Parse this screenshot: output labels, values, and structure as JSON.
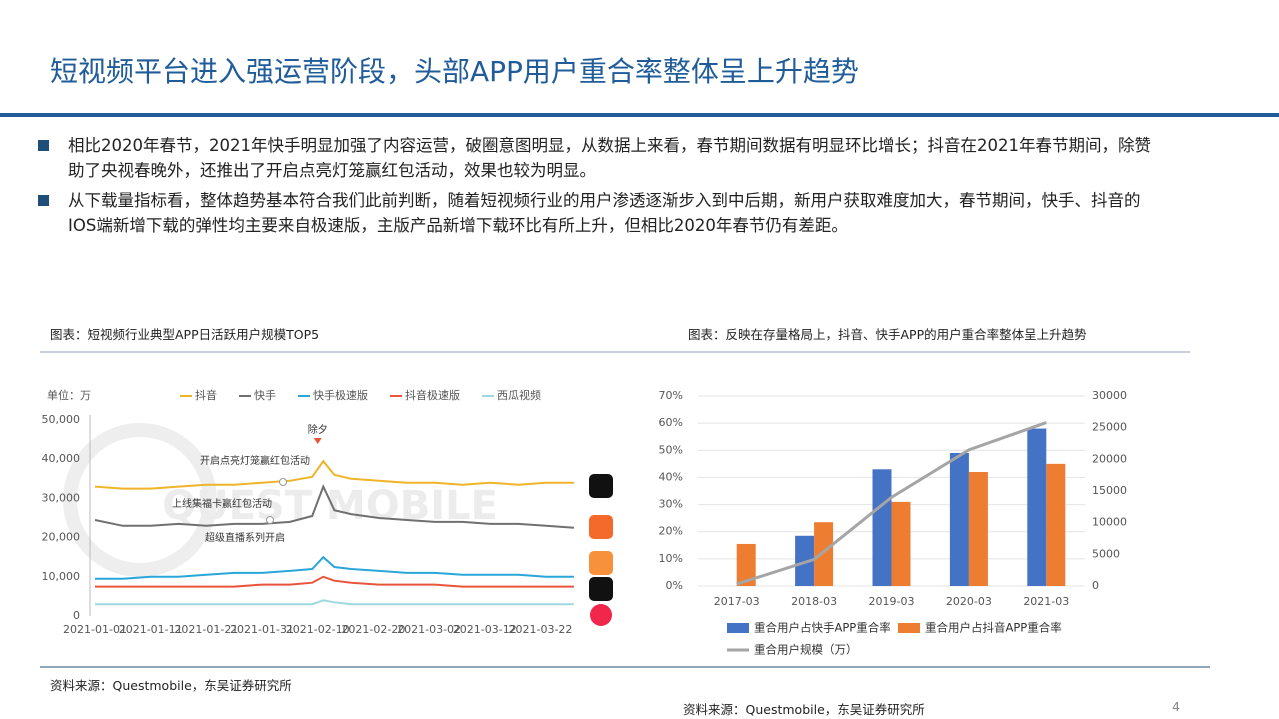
{
  "header": {
    "title": "短视频平台进入强运营阶段，头部APP用户重合率整体呈上升趋势"
  },
  "bullets": [
    "相比2020年春节，2021年快手明显加强了内容运营，破圈意图明显，从数据上来看，春节期间数据有明显环比增长；抖音在2021年春节期间，除赞助了央视春晚外，还推出了开启点亮灯笼赢红包活动，效果也较为明显。",
    "从下载量指标看，整体趋势基本符合我们此前判断，随着短视频行业的用户渗透逐渐步入到中后期，新用户获取难度加大，春节期间，快手、抖音的IOS端新增下载的弹性均主要来自极速版，主版产品新增下载环比有所上升，但相比2020年春节仍有差距。"
  ],
  "footer": {
    "source": "资料来源：Questmobile，东吴证券研究所",
    "page_number": 4
  },
  "chart_data": [
    {
      "type": "line",
      "caption": "图表：短视频行业典型APP日活跃用户规模TOP5",
      "source": "资料来源：Questmobile，东吴证券研究所",
      "unit": "单位：万",
      "watermark": "QUEST MOBILE",
      "annotations": [
        "除夕",
        "开启点亮灯笼赢红包活动",
        "上线集福卡赢红包活动",
        "超级直播系列开启"
      ],
      "x": [
        "2021-01-01",
        "2021-01-06",
        "2021-01-11",
        "2021-01-16",
        "2021-01-21",
        "2021-01-26",
        "2021-01-31",
        "2021-02-05",
        "2021-02-09",
        "2021-02-11",
        "2021-02-13",
        "2021-02-16",
        "2021-02-21",
        "2021-02-26",
        "2021-03-03",
        "2021-03-08",
        "2021-03-13",
        "2021-03-18",
        "2021-03-23",
        "2021-03-28"
      ],
      "xlim": [
        "2021-01-01",
        "2021-03-30"
      ],
      "xticks": [
        "2021-01-01",
        "2021-01-11",
        "2021-01-21",
        "2021-01-31",
        "2021-02-10",
        "2021-02-20",
        "2021-03-02",
        "2021-03-12",
        "2021-03-22"
      ],
      "ylim": [
        0,
        50000
      ],
      "yticks": [
        0,
        {
          "value": 10000,
          "label": "10,000"
        },
        {
          "value": 20000,
          "label": "20,000"
        },
        {
          "value": 30000,
          "label": "30,000"
        },
        {
          "value": 40000,
          "label": "40,000"
        },
        {
          "value": 50000,
          "label": "50,000"
        }
      ],
      "series": [
        {
          "name": "抖音",
          "color": "#f0b42a",
          "values": [
            33000,
            32500,
            32500,
            33000,
            33500,
            33500,
            34000,
            34500,
            35500,
            39500,
            36000,
            35000,
            34500,
            34000,
            34000,
            33500,
            34000,
            33500,
            34000,
            34000
          ]
        },
        {
          "name": "快手",
          "color": "#707070",
          "values": [
            24500,
            23000,
            23000,
            23500,
            23000,
            23500,
            23500,
            24000,
            25500,
            33000,
            27000,
            26000,
            25000,
            24500,
            24000,
            24000,
            23500,
            23500,
            23000,
            22500
          ]
        },
        {
          "name": "快手极速版",
          "color": "#2aa6d8",
          "values": [
            9500,
            9500,
            10000,
            10000,
            10500,
            11000,
            11000,
            11500,
            12000,
            15000,
            12500,
            12000,
            11500,
            11000,
            11000,
            10500,
            10500,
            10500,
            10000,
            10000
          ]
        },
        {
          "name": "抖音极速版",
          "color": "#e8553a",
          "values": [
            7500,
            7500,
            7500,
            7500,
            7500,
            7500,
            8000,
            8000,
            8500,
            10000,
            9000,
            8500,
            8000,
            8000,
            8000,
            7500,
            7500,
            7500,
            7500,
            7500
          ]
        },
        {
          "name": "西瓜视频",
          "color": "#9fd9e0",
          "values": [
            3000,
            3000,
            3000,
            3000,
            3000,
            3000,
            3000,
            3000,
            3000,
            4000,
            3500,
            3000,
            3000,
            3000,
            3000,
            3000,
            3000,
            3000,
            3000,
            3000
          ]
        }
      ]
    },
    {
      "type": "bar-line",
      "caption": "图表：反映在存量格局上，抖音、快手APP的用户重合率整体呈上升趋势",
      "categories": [
        "2017-03",
        "2018-03",
        "2019-03",
        "2020-03",
        "2021-03"
      ],
      "ylim": [
        0,
        70
      ],
      "yticks": [
        {
          "value": 0,
          "label": "0%"
        },
        {
          "value": 10,
          "label": "10%"
        },
        {
          "value": 20,
          "label": "20%"
        },
        {
          "value": 30,
          "label": "30%"
        },
        {
          "value": 40,
          "label": "40%"
        },
        {
          "value": 50,
          "label": "50%"
        },
        {
          "value": 60,
          "label": "60%"
        },
        {
          "value": 70,
          "label": "70%"
        }
      ],
      "y2lim": [
        0,
        30000
      ],
      "y2ticks": [
        0,
        5000,
        10000,
        15000,
        20000,
        25000,
        30000
      ],
      "grid": true,
      "series": [
        {
          "name": "重合用户占快手APP重合率",
          "color": "#4472c4",
          "kind": "bar",
          "values": [
            null,
            18.5,
            43,
            49,
            58
          ]
        },
        {
          "name": "重合用户占抖音APP重合率",
          "color": "#ed7d31",
          "kind": "bar",
          "values": [
            15.5,
            23.5,
            31,
            42,
            45
          ]
        },
        {
          "name": "重合用户规模（万）",
          "color": "#a5a5a5",
          "kind": "line",
          "axis": "y2",
          "values": [
            300,
            4200,
            14000,
            21500,
            25800
          ]
        }
      ]
    }
  ]
}
